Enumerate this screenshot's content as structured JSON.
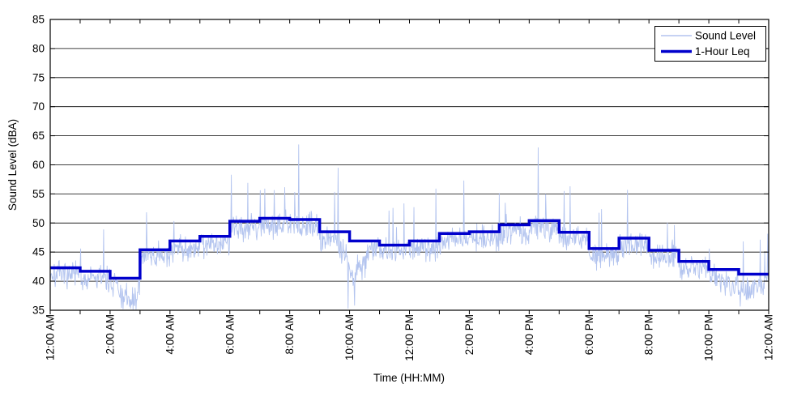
{
  "chart_data": {
    "type": "line",
    "title": "",
    "xlabel": "Time (HH:MM)",
    "ylabel": "Sound Level (dBA)",
    "ylim": [
      35,
      85
    ],
    "ytick_step": 5,
    "x_range_hours": [
      0,
      24
    ],
    "x_tick_every_hours": 1,
    "x_label_every_hours": 2,
    "x_tick_labels": [
      "12:00 AM",
      "2:00 AM",
      "4:00 AM",
      "6:00 AM",
      "8:00 AM",
      "10:00 AM",
      "12:00 PM",
      "2:00 PM",
      "4:00 PM",
      "6:00 PM",
      "8:00 PM",
      "10:00 PM",
      "12:00 AM"
    ],
    "grid": "horizontal",
    "legend_position": "top-right",
    "legend": [
      {
        "label": "Sound Level",
        "color": "#b3c4ef",
        "line_width": 1.5
      },
      {
        "label": "1-Hour Leq",
        "color": "#0000cc",
        "line_width": 3.5
      }
    ],
    "series": [
      {
        "name": "1-Hour Leq",
        "type": "step",
        "units": "dBA",
        "hours": [
          0,
          1,
          2,
          3,
          4,
          5,
          6,
          7,
          8,
          9,
          10,
          11,
          12,
          13,
          14,
          15,
          16,
          17,
          18,
          19,
          20,
          21,
          22,
          23
        ],
        "hourly_values": [
          42.3,
          41.7,
          40.5,
          45.4,
          46.9,
          47.7,
          50.3,
          50.8,
          50.6,
          48.5,
          46.9,
          46.2,
          46.9,
          48.2,
          48.5,
          49.7,
          50.4,
          48.4,
          45.6,
          47.4,
          45.3,
          43.4,
          42.0,
          41.2
        ]
      },
      {
        "name": "Sound Level",
        "type": "noisy-minute-samples",
        "units": "dBA",
        "approx_value_range": [
          35.1,
          63.5
        ],
        "notable_peaks": [
          {
            "minute": 396,
            "value": 56.9
          },
          {
            "minute": 498,
            "value": 63.5
          },
          {
            "minute": 577,
            "value": 59.5
          },
          {
            "minute": 773,
            "value": 55.9
          },
          {
            "minute": 829,
            "value": 57.3
          },
          {
            "minute": 978,
            "value": 63.0
          },
          {
            "minute": 1030,
            "value": 55.5
          },
          {
            "minute": 1157,
            "value": 55.7
          }
        ],
        "notable_lows": [
          {
            "minute": 155,
            "value": 36.2
          },
          {
            "minute": 597,
            "value": 35.3
          },
          {
            "minute": 610,
            "value": 35.8
          },
          {
            "minute": 1392,
            "value": 37.6
          }
        ],
        "gen": {
          "seed": 7,
          "n_minutes": 1440,
          "baseline_offset": -1.1,
          "jitter": 3.4,
          "spike_prob": 0.015,
          "spike_extra": 6,
          "dip_zones": [
            {
              "start": 575,
              "end": 640,
              "depth": 6.0
            },
            {
              "start": 130,
              "end": 185,
              "depth": 3.5
            },
            {
              "start": 1330,
              "end": 1439,
              "depth": 2.5
            }
          ]
        }
      }
    ]
  },
  "colors": {
    "background": "#ffffff",
    "plot_border": "#000000",
    "gridline": "#000000",
    "tick": "#000000",
    "text": "#000000",
    "sound_level_line": "#b3c4ef",
    "leq_line": "#0000cc"
  }
}
